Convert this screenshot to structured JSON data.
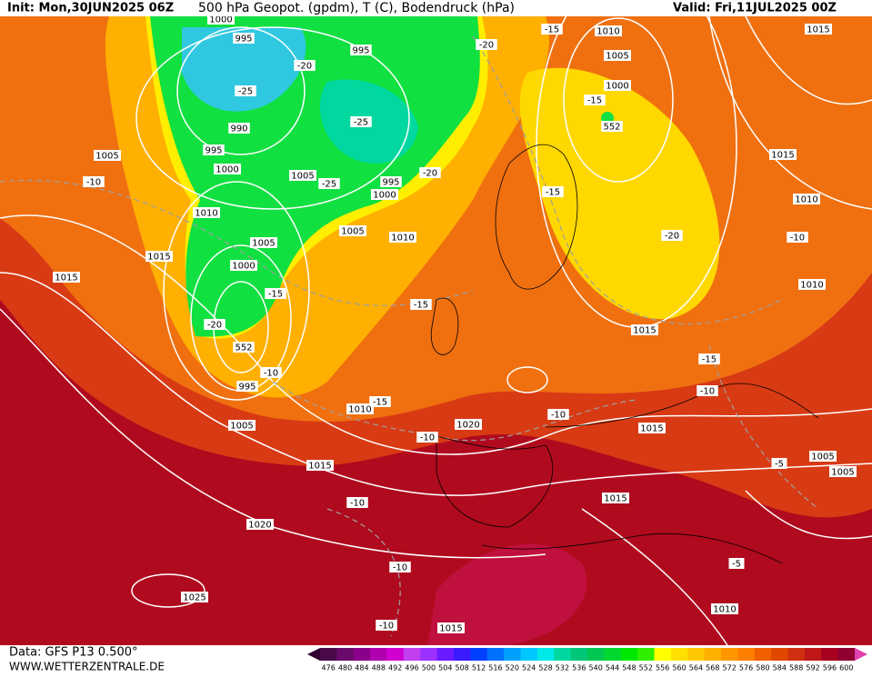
{
  "header": {
    "init": "Init: Mon,30JUN2025 06Z",
    "title": "500 hPa Geopot. (gpdm), T (C), Bodendruck (hPa)",
    "valid": "Valid: Fri,11JUL2025 00Z"
  },
  "footer": {
    "data": "Data: GFS P13 0.500°",
    "site": "WWW.WETTERZENTRALE.DE"
  },
  "contour_labels": [
    1000,
    995,
    995,
    -20,
    -25,
    990,
    -25,
    995,
    1000,
    1005,
    -25,
    995,
    1000,
    -20,
    1005,
    -10,
    1010,
    1005,
    1005,
    1010,
    1015,
    1015,
    1000,
    -15,
    -20,
    552,
    -15,
    -10,
    995,
    -15,
    1010,
    1005,
    1020,
    -10,
    1015,
    -10,
    1020,
    -10,
    1025,
    -10,
    1015,
    1015,
    -15,
    -10,
    -10,
    1015,
    1015,
    1005,
    -5,
    1005,
    1010,
    -5,
    1010,
    1005,
    1000,
    -15,
    552,
    -15,
    -20,
    -15,
    -20,
    1015,
    1010,
    -10,
    1010,
    1015
  ],
  "colorbar": {
    "labels": [
      476,
      480,
      484,
      488,
      492,
      496,
      500,
      504,
      508,
      512,
      516,
      520,
      524,
      528,
      532,
      536,
      540,
      544,
      548,
      552,
      556,
      560,
      564,
      568,
      572,
      576,
      580,
      584,
      588,
      592,
      596,
      600
    ],
    "colors": [
      "#4b0a4b",
      "#6a0a6a",
      "#8a008a",
      "#b000b0",
      "#d000d0",
      "#c040f0",
      "#9b30ff",
      "#6a1aff",
      "#3a1aff",
      "#0040ff",
      "#0070ff",
      "#00a0ff",
      "#00c8ff",
      "#00e8e8",
      "#00d8a0",
      "#00c878",
      "#00c850",
      "#00d830",
      "#00e800",
      "#30f000",
      "#ffff00",
      "#ffe000",
      "#ffc800",
      "#ffb000",
      "#ff9800",
      "#ff8000",
      "#f06000",
      "#e04800",
      "#d03010",
      "#c01818",
      "#a80020",
      "#900030"
    ],
    "low_color": "#300030",
    "high_color": "#e040b0"
  }
}
